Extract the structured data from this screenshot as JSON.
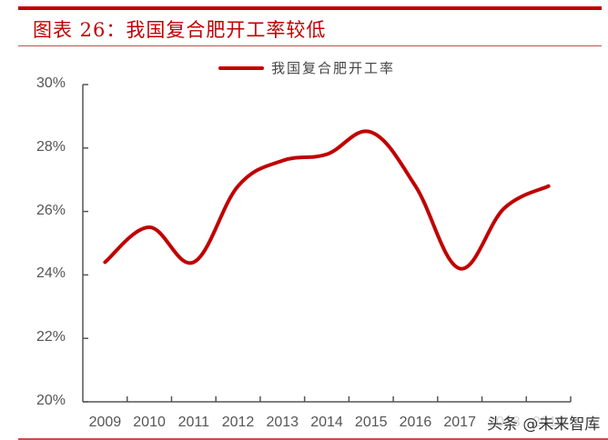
{
  "header": {
    "title": "图表 26：我国复合肥开工率较低"
  },
  "legend": {
    "items": [
      {
        "label": "我国复合肥开工率",
        "color": "#c00000"
      }
    ]
  },
  "watermark": "头条 @未来智库",
  "colors": {
    "accent": "#c00000",
    "rule": "#c0504d",
    "axis": "#555555"
  },
  "chart_data": {
    "type": "line",
    "title": "图表 26：我国复合肥开工率较低",
    "xlabel": "",
    "ylabel": "",
    "categories": [
      "2009",
      "2010",
      "2011",
      "2012",
      "2013",
      "2014",
      "2015",
      "2016",
      "2017",
      "2018",
      "2019"
    ],
    "series": [
      {
        "name": "我国复合肥开工率",
        "values": [
          24.4,
          25.5,
          24.4,
          26.8,
          27.6,
          27.8,
          28.5,
          26.8,
          24.2,
          26.1,
          26.8
        ],
        "color": "#c00000",
        "smooth": true
      }
    ],
    "ylim": [
      20,
      30
    ],
    "yticks": [
      "20%",
      "22%",
      "24%",
      "26%",
      "28%",
      "30%"
    ],
    "xtick_labels": [
      "2009",
      "2010",
      "2011",
      "2012",
      "2013",
      "2014",
      "2015",
      "2016",
      "2017",
      "2018",
      "2019"
    ],
    "grid": false,
    "legend_position": "top"
  }
}
